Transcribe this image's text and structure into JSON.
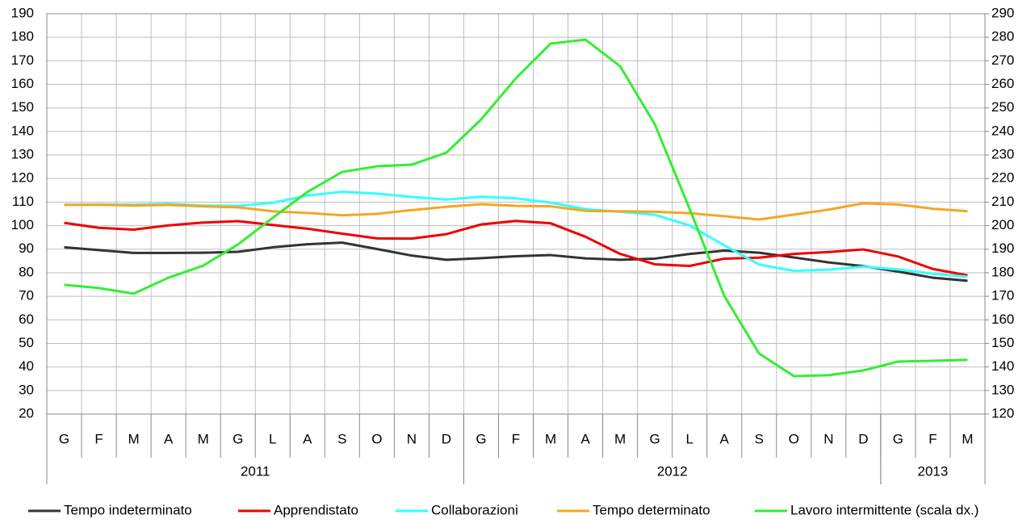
{
  "chart_data": {
    "type": "line",
    "categories": [
      "G",
      "F",
      "M",
      "A",
      "M",
      "G",
      "L",
      "A",
      "S",
      "O",
      "N",
      "D",
      "G",
      "F",
      "M",
      "A",
      "M",
      "G",
      "L",
      "A",
      "S",
      "O",
      "N",
      "D",
      "G",
      "F",
      "M"
    ],
    "category_groups": [
      {
        "label": "2011",
        "count": 12
      },
      {
        "label": "2012",
        "count": 12
      },
      {
        "label": "2013",
        "count": 3
      }
    ],
    "ylim": [
      20,
      190
    ],
    "yticks": [
      20,
      30,
      40,
      50,
      60,
      70,
      80,
      90,
      100,
      110,
      120,
      130,
      140,
      150,
      160,
      170,
      180,
      190
    ],
    "y2lim": [
      120,
      290
    ],
    "y2ticks": [
      120,
      130,
      140,
      150,
      160,
      170,
      180,
      190,
      200,
      210,
      220,
      230,
      240,
      250,
      260,
      270,
      280,
      290
    ],
    "grid": true,
    "legend": "bottom",
    "series": [
      {
        "name": "Tempo indeterminato",
        "color": "#333333",
        "values": [
          90.8,
          89.6,
          88.4,
          88.4,
          88.5,
          88.9,
          90.8,
          92.1,
          92.8,
          90.1,
          87.3,
          85.5,
          86.2,
          87.0,
          87.5,
          86.1,
          85.5,
          86.0,
          88.0,
          89.4,
          88.5,
          86.5,
          84.4,
          82.8,
          80.5,
          77.9,
          76.6
        ]
      },
      {
        "name": "Apprendistato",
        "color": "#ee0000",
        "values": [
          101.2,
          99.1,
          98.3,
          100.1,
          101.3,
          101.9,
          100.3,
          98.7,
          96.6,
          94.6,
          94.5,
          96.4,
          100.5,
          102.0,
          101.0,
          95.3,
          88.0,
          83.6,
          82.9,
          86.0,
          86.4,
          88.0,
          88.8,
          89.9,
          86.9,
          81.6,
          78.9
        ]
      },
      {
        "name": "Collaborazioni",
        "color": "#33ffff",
        "values": [
          108.9,
          109.0,
          108.9,
          109.3,
          108.5,
          108.4,
          109.7,
          112.8,
          114.4,
          113.6,
          112.2,
          111.1,
          112.3,
          111.6,
          109.8,
          107.0,
          105.9,
          104.6,
          100.1,
          91.6,
          83.5,
          80.8,
          81.3,
          82.6,
          81.4,
          79.6,
          78.3
        ]
      },
      {
        "name": "Tempo determinato",
        "color": "#f5a623",
        "values": [
          108.8,
          108.9,
          108.5,
          108.8,
          108.2,
          107.8,
          106.1,
          105.4,
          104.4,
          105.0,
          106.6,
          108.0,
          109.1,
          108.4,
          108.2,
          106.3,
          106.1,
          105.9,
          105.3,
          104.0,
          102.6,
          104.7,
          106.8,
          109.5,
          109.0,
          107.2,
          106.1
        ]
      },
      {
        "name": "Lavoro intermittente (scala dx.)",
        "color": "#33ee33",
        "axis": "y2",
        "values": [
          174.9,
          173.5,
          171.1,
          177.9,
          183.0,
          192.0,
          203.3,
          214.3,
          222.8,
          225.2,
          225.9,
          231.0,
          245.1,
          262.6,
          277.3,
          279.0,
          267.7,
          243.0,
          207.1,
          170.1,
          145.7,
          136.1,
          136.5,
          138.5,
          142.3,
          142.6,
          143.0
        ]
      }
    ]
  }
}
